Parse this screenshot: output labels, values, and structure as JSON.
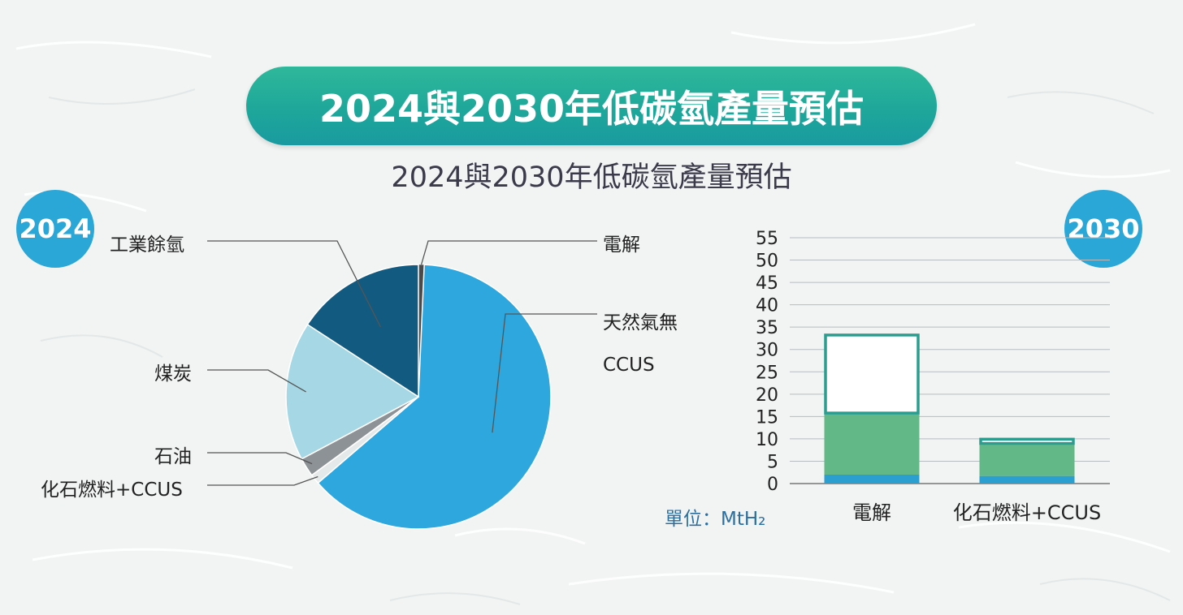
{
  "title": "2024與2030年低碳氫產量預估",
  "subtitle": "2024與2030年低碳氫產量預估",
  "colors": {
    "banner": "#1ea79a",
    "badge": "#2aa6d7",
    "unit_text": "#2c6e9e",
    "teal_outline": "#2a9d8f"
  },
  "chart_data": [
    {
      "type": "pie",
      "year_label": "2024",
      "slices": [
        {
          "label": "電解",
          "value": 0.7,
          "color": "#4a4a4a"
        },
        {
          "label": "天然氣無CCUS",
          "value": 63.0,
          "color": "#2ea7de"
        },
        {
          "label": "化石燃料+CCUS",
          "value": 1.2,
          "color": "#e6e9ea"
        },
        {
          "label": "石油",
          "value": 2.3,
          "color": "#8d9296"
        },
        {
          "label": "煤炭",
          "value": 17.0,
          "color": "#a6d7e5"
        },
        {
          "label": "工業餘氫",
          "value": 15.8,
          "color": "#135a80"
        }
      ]
    },
    {
      "type": "bar",
      "year_label": "2030",
      "categories": [
        "電解",
        "化石燃料+CCUS"
      ],
      "ylim": [
        0,
        55
      ],
      "yticks": [
        "0",
        "5",
        "10",
        "15",
        "20",
        "25",
        "30",
        "35",
        "40",
        "45",
        "50",
        "55"
      ],
      "unit": "單位：MtH₂",
      "grid": true,
      "stacks": [
        {
          "segments": [
            2,
            13.5,
            18
          ],
          "total": 33.5
        },
        {
          "segments": [
            1.7,
            7,
            1.5
          ],
          "total": 10.2
        }
      ],
      "segment_styles": [
        "#2a9fd0",
        "#63b887",
        "outline"
      ]
    }
  ]
}
